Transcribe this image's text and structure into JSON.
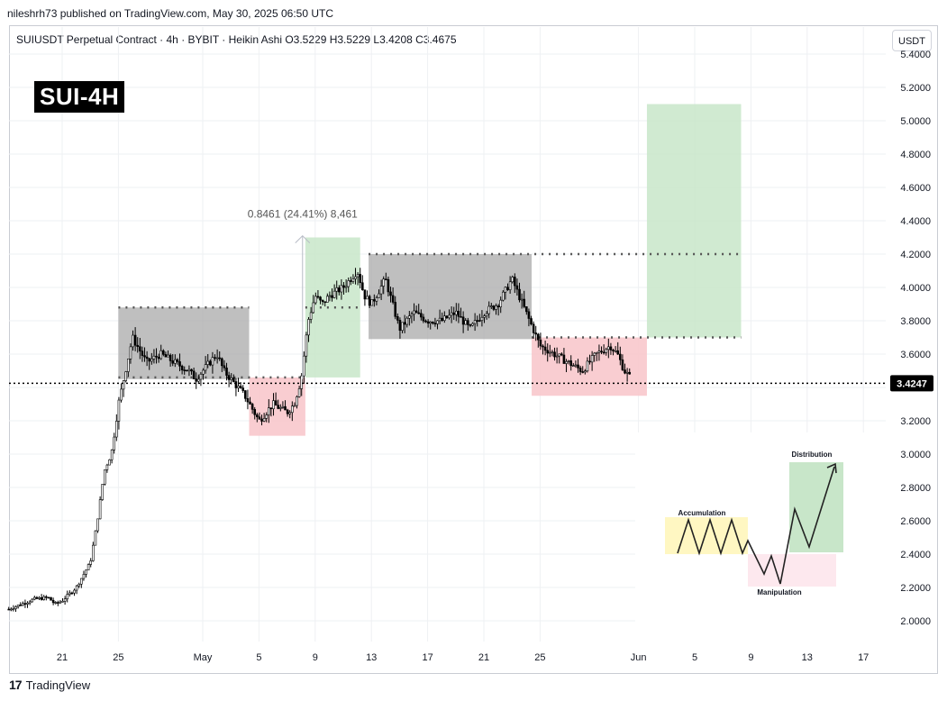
{
  "header": {
    "published": "nileshrh73 published on TradingView.com, May 30, 2025 06:50 UTC",
    "legend": "SUIUSDT Perpetual Contract · 4h · BYBIT · Heikin Ashi  O3.5229  H3.5229  L3.4208  C3.4675",
    "currency": "USDT"
  },
  "tag": "SUI-4H",
  "footer": {
    "brand": "TradingView",
    "logo_glyph": "17"
  },
  "colors": {
    "accent_green": "#c8e6c9",
    "accent_red": "#f8c8cc",
    "accent_gray": "#a9a9a9",
    "candle": "#000000"
  },
  "chart_data": {
    "type": "candlestick",
    "ylim": [
      1.95,
      5.45
    ],
    "yticks": [
      "5.4000",
      "5.2000",
      "5.0000",
      "4.8000",
      "4.6000",
      "4.4000",
      "4.2000",
      "4.0000",
      "3.8000",
      "3.6000",
      "3.4000",
      "3.2000",
      "3.0000",
      "2.8000",
      "2.6000",
      "2.4000",
      "2.2000",
      "2.0000"
    ],
    "yticks_values": [
      5.4,
      5.2,
      5.0,
      4.8,
      4.6,
      4.4,
      4.2,
      4.0,
      3.8,
      3.6,
      3.4,
      3.2,
      3.0,
      2.8,
      2.6,
      2.4,
      2.2,
      2.0
    ],
    "xticks": [
      {
        "label": "21",
        "day": 21
      },
      {
        "label": "25",
        "day": 25
      },
      {
        "label": "May",
        "day": 31
      },
      {
        "label": "5",
        "day": 35
      },
      {
        "label": "9",
        "day": 39
      },
      {
        "label": "13",
        "day": 43
      },
      {
        "label": "17",
        "day": 47
      },
      {
        "label": "21",
        "day": 51
      },
      {
        "label": "25",
        "day": 55
      },
      {
        "label": "Jun",
        "day": 62
      },
      {
        "label": "5",
        "day": 66
      },
      {
        "label": "9",
        "day": 70
      },
      {
        "label": "13",
        "day": 74
      },
      {
        "label": "17",
        "day": 78
      }
    ],
    "xlim_days": [
      17.2,
      82.5
    ],
    "last_price": "3.4247",
    "last_price_value": 3.4247,
    "measure": {
      "text": "0.8461 (24.41%) 8,461",
      "day": 38.1,
      "from": 3.45,
      "to": 4.31
    },
    "path": [
      [
        17.2,
        2.07
      ],
      [
        19,
        2.13
      ],
      [
        20,
        2.14
      ],
      [
        20.5,
        2.1
      ],
      [
        21,
        2.12
      ],
      [
        22,
        2.2
      ],
      [
        23,
        2.35
      ],
      [
        23.5,
        2.6
      ],
      [
        24,
        2.9
      ],
      [
        24.5,
        3.0
      ],
      [
        25,
        3.3
      ],
      [
        25.5,
        3.5
      ],
      [
        26,
        3.7
      ],
      [
        27,
        3.55
      ],
      [
        28,
        3.6
      ],
      [
        29,
        3.55
      ],
      [
        30,
        3.5
      ],
      [
        30.5,
        3.45
      ],
      [
        31,
        3.5
      ],
      [
        32,
        3.6
      ],
      [
        32.5,
        3.5
      ],
      [
        33,
        3.45
      ],
      [
        34,
        3.35
      ],
      [
        35,
        3.2
      ],
      [
        36,
        3.3
      ],
      [
        37,
        3.25
      ],
      [
        37.5,
        3.3
      ],
      [
        38,
        3.45
      ],
      [
        38.5,
        3.8
      ],
      [
        39,
        3.95
      ],
      [
        39.5,
        3.9
      ],
      [
        40,
        3.95
      ],
      [
        41,
        4.0
      ],
      [
        41.5,
        4.05
      ],
      [
        42,
        4.1
      ],
      [
        42.5,
        3.95
      ],
      [
        43,
        3.9
      ],
      [
        44,
        4.05
      ],
      [
        45,
        3.75
      ],
      [
        46,
        3.85
      ],
      [
        47,
        3.8
      ],
      [
        48,
        3.8
      ],
      [
        49,
        3.85
      ],
      [
        50,
        3.75
      ],
      [
        51,
        3.85
      ],
      [
        52,
        3.9
      ],
      [
        53,
        4.05
      ],
      [
        54,
        3.85
      ],
      [
        55,
        3.65
      ],
      [
        56,
        3.6
      ],
      [
        57,
        3.55
      ],
      [
        58,
        3.5
      ],
      [
        59,
        3.6
      ],
      [
        60,
        3.65
      ],
      [
        60.5,
        3.6
      ],
      [
        61,
        3.5
      ],
      [
        61.5,
        3.45
      ]
    ],
    "zones": [
      {
        "kind": "gray",
        "x0": 25,
        "x1": 34.3,
        "y0": 3.45,
        "y1": 3.88
      },
      {
        "kind": "red",
        "x0": 34.3,
        "x1": 38.3,
        "y0": 3.11,
        "y1": 3.46
      },
      {
        "kind": "green",
        "x0": 38.3,
        "x1": 42.2,
        "y0": 3.46,
        "y1": 4.3
      },
      {
        "kind": "gray",
        "x0": 42.8,
        "x1": 54.4,
        "y0": 3.69,
        "y1": 4.2
      },
      {
        "kind": "red",
        "x0": 54.4,
        "x1": 62.6,
        "y0": 3.35,
        "y1": 3.7
      },
      {
        "kind": "green",
        "x0": 62.6,
        "x1": 69.3,
        "y0": 3.7,
        "y1": 5.1
      }
    ],
    "dotted_levels": [
      {
        "x0": 25,
        "x1": 34.3,
        "y": 3.88
      },
      {
        "x0": 25,
        "x1": 38.3,
        "y": 3.46
      },
      {
        "x0": 38.3,
        "x1": 42.2,
        "y": 3.88
      },
      {
        "x0": 42.8,
        "x1": 69.3,
        "y": 4.2
      },
      {
        "x0": 54.4,
        "x1": 69.3,
        "y": 3.7
      }
    ],
    "inset": {
      "accumulation": "Accumulation",
      "manipulation": "Manipulation",
      "distribution": "Distribution"
    }
  }
}
